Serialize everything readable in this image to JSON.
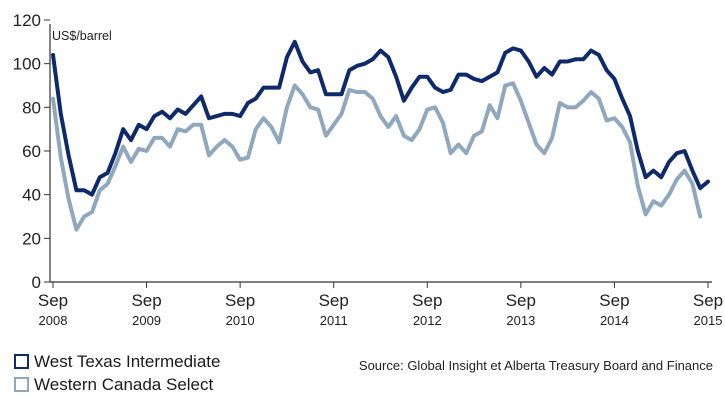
{
  "chart_data": {
    "type": "line",
    "title": "",
    "xlabel": "",
    "ylabel": "",
    "unit_label": "US$/barrel",
    "ylim": [
      0,
      120
    ],
    "y_ticks": [
      0,
      20,
      40,
      60,
      80,
      100,
      120
    ],
    "x_ticks": [
      {
        "month": "Sep",
        "year": "2008"
      },
      {
        "month": "Sep",
        "year": "2009"
      },
      {
        "month": "Sep",
        "year": "2010"
      },
      {
        "month": "Sep",
        "year": "2011"
      },
      {
        "month": "Sep",
        "year": "2012"
      },
      {
        "month": "Sep",
        "year": "2013"
      },
      {
        "month": "Sep",
        "year": "2014"
      },
      {
        "month": "Sep",
        "year": "2015"
      }
    ],
    "grid": false,
    "legend_position": "bottom-left",
    "series": [
      {
        "name": "West Texas Intermediate",
        "color": "#0f2a6b",
        "values": [
          104,
          77,
          58,
          42,
          42,
          40,
          48,
          50,
          59,
          70,
          65,
          72,
          70,
          76,
          78,
          75,
          79,
          77,
          81,
          85,
          75,
          76,
          77,
          77,
          76,
          82,
          84,
          89,
          89,
          89,
          103,
          110,
          101,
          96,
          97,
          86,
          86,
          86,
          97,
          99,
          100,
          102,
          106,
          103,
          94,
          83,
          89,
          94,
          94,
          89,
          87,
          88,
          95,
          95,
          93,
          92,
          94,
          96,
          105,
          107,
          106,
          101,
          94,
          98,
          95,
          101,
          101,
          102,
          102,
          106,
          104,
          97,
          93,
          84,
          76,
          60,
          48,
          51,
          48,
          55,
          59,
          60,
          51,
          43,
          46
        ]
      },
      {
        "name": "Western Canada Select",
        "color": "#8fa8bd",
        "values": [
          84,
          57,
          38,
          24,
          30,
          32,
          42,
          45,
          53,
          62,
          55,
          61,
          60,
          66,
          66,
          62,
          70,
          69,
          72,
          72,
          58,
          62,
          65,
          62,
          56,
          57,
          70,
          75,
          71,
          64,
          80,
          90,
          86,
          80,
          79,
          67,
          72,
          77,
          88,
          87,
          87,
          84,
          76,
          71,
          76,
          67,
          65,
          70,
          79,
          80,
          73,
          59,
          63,
          59,
          67,
          69,
          81,
          75,
          90,
          91,
          83,
          73,
          63,
          59,
          66,
          82,
          80,
          80,
          83,
          87,
          84,
          74,
          75,
          71,
          64,
          44,
          31,
          37,
          35,
          40,
          47,
          51,
          45,
          30
        ]
      }
    ]
  },
  "legend": {
    "wti_label": "West Texas Intermediate",
    "wcs_label": "Western Canada Select",
    "wti_color": "#0f2a6b",
    "wcs_color": "#8fa8bd"
  },
  "source_text": "Source: Global Insight et Alberta Treasury Board and Finance"
}
